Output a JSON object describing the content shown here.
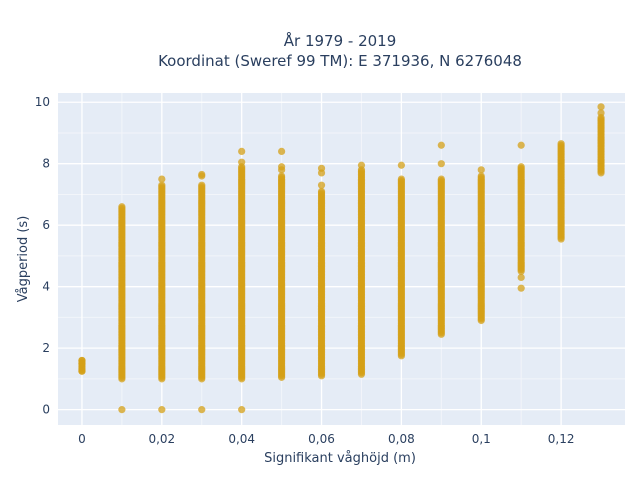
{
  "chart_data": {
    "type": "scatter",
    "title": "År 1979 - 2019",
    "subtitle": "Koordinat (Sweref 99 TM): E 371936, N 6276048",
    "xlabel": "Signifikant våghöjd (m)",
    "ylabel": "Vågperiod (s)",
    "xlim": [
      -0.006,
      0.136
    ],
    "ylim": [
      -0.5,
      10.3
    ],
    "xticks": [
      0,
      0.02,
      0.04,
      0.06,
      0.08,
      0.1,
      0.12
    ],
    "xtick_labels": [
      "0",
      "0,02",
      "0,04",
      "0,06",
      "0,08",
      "0,1",
      "0,12"
    ],
    "yticks": [
      0,
      2,
      4,
      6,
      8,
      10
    ],
    "ytick_labels": [
      "0",
      "2",
      "4",
      "6",
      "8",
      "10"
    ],
    "grid": true,
    "marker_color": "#d4a017",
    "plot_bg": "#e5ecf6",
    "columns": [
      {
        "x": 0.0,
        "min": 1.25,
        "max": 1.6,
        "outliers": [
          1.25,
          1.5,
          1.6
        ]
      },
      {
        "x": 0.01,
        "min": 1.0,
        "max": 6.6,
        "outliers": [
          0.0
        ]
      },
      {
        "x": 0.02,
        "min": 1.0,
        "max": 7.3,
        "outliers": [
          0.0,
          7.5
        ]
      },
      {
        "x": 0.03,
        "min": 1.0,
        "max": 7.3,
        "outliers": [
          0.0,
          7.6,
          7.65
        ]
      },
      {
        "x": 0.04,
        "min": 1.0,
        "max": 7.9,
        "outliers": [
          0.0,
          8.05,
          8.4
        ]
      },
      {
        "x": 0.05,
        "min": 1.05,
        "max": 7.6,
        "outliers": [
          7.8,
          7.9,
          8.4
        ]
      },
      {
        "x": 0.06,
        "min": 1.1,
        "max": 7.1,
        "outliers": [
          7.3,
          7.7,
          7.85
        ]
      },
      {
        "x": 0.07,
        "min": 1.15,
        "max": 7.8,
        "outliers": [
          7.95
        ]
      },
      {
        "x": 0.08,
        "min": 1.75,
        "max": 7.5,
        "outliers": [
          7.95
        ]
      },
      {
        "x": 0.09,
        "min": 2.45,
        "max": 7.5,
        "outliers": [
          8.0,
          8.6
        ]
      },
      {
        "x": 0.1,
        "min": 2.9,
        "max": 7.6,
        "outliers": [
          7.8
        ]
      },
      {
        "x": 0.11,
        "min": 4.5,
        "max": 7.9,
        "outliers": [
          3.95,
          4.3,
          8.6
        ]
      },
      {
        "x": 0.12,
        "min": 5.55,
        "max": 8.65,
        "outliers": []
      },
      {
        "x": 0.13,
        "min": 7.7,
        "max": 9.5,
        "outliers": [
          9.65,
          9.85
        ]
      }
    ]
  }
}
